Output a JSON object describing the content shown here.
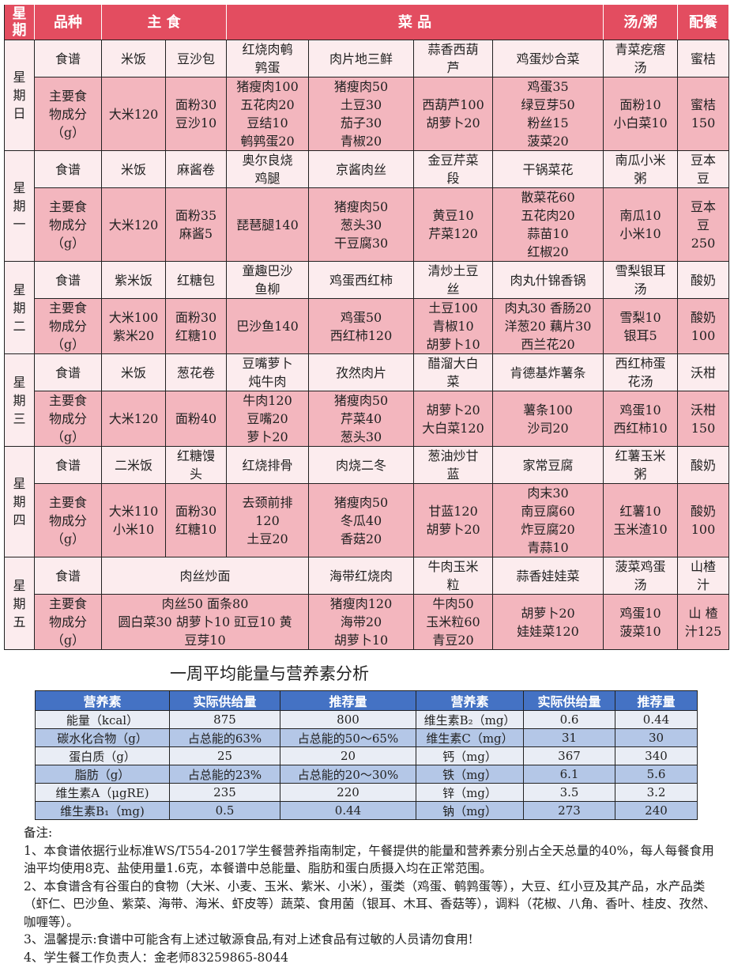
{
  "menu": {
    "header": {
      "day": "星\n期",
      "kind": "品种",
      "staple": "主 食",
      "dishes": "菜 品",
      "soup": "汤/粥",
      "side": "配餐"
    },
    "days": [
      {
        "day": "星\n期\n日",
        "recipe": [
          {
            "t": "食谱"
          },
          {
            "t": "米饭"
          },
          {
            "t": "豆沙包"
          },
          {
            "t": "红烧肉鹌\n鹑蛋"
          },
          {
            "t": "肉片地三鲜"
          },
          {
            "t": "蒜香西葫\n芦"
          },
          {
            "t": "鸡蛋炒合菜"
          },
          {
            "t": "青菜疙瘩\n汤"
          },
          {
            "t": "蜜桔"
          }
        ],
        "ingr": [
          {
            "t": "主要食\n物成分\n（g）"
          },
          {
            "t": "大米120"
          },
          {
            "t": "面粉30\n豆沙10"
          },
          {
            "t": "猪瘦肉100\n五花肉20\n豆结10\n鹌鹑蛋20"
          },
          {
            "t": "猪瘦肉50\n土豆30\n茄子30\n青椒20"
          },
          {
            "t": "西葫芦100\n胡萝卜20"
          },
          {
            "t": "鸡蛋35\n绿豆芽50\n粉丝15\n菠菜20"
          },
          {
            "t": "面粉10\n小白菜10"
          },
          {
            "t": "蜜桔\n150"
          }
        ]
      },
      {
        "day": "星\n期\n一",
        "recipe": [
          {
            "t": "食谱"
          },
          {
            "t": "米饭"
          },
          {
            "t": "麻酱卷"
          },
          {
            "t": "奥尔良烧\n鸡腿"
          },
          {
            "t": "京酱肉丝"
          },
          {
            "t": "金豆芹菜\n段"
          },
          {
            "t": "干锅菜花"
          },
          {
            "t": "南瓜小米\n粥"
          },
          {
            "t": "豆本\n豆"
          }
        ],
        "ingr": [
          {
            "t": "主要食\n物成分\n（g）"
          },
          {
            "t": "大米120"
          },
          {
            "t": "面粉35\n麻酱5"
          },
          {
            "t": "琵琶腿140"
          },
          {
            "t": "猪瘦肉50\n葱头30\n干豆腐30"
          },
          {
            "t": "黄豆10\n芹菜120"
          },
          {
            "t": "散菜花60\n五花肉20\n蒜苗10\n红椒20"
          },
          {
            "t": "南瓜10\n小米10"
          },
          {
            "t": "豆本\n豆\n250"
          }
        ]
      },
      {
        "day": "星\n期\n二",
        "recipe": [
          {
            "t": "食谱"
          },
          {
            "t": "紫米饭"
          },
          {
            "t": "红糖包"
          },
          {
            "t": "童趣巴沙\n鱼柳"
          },
          {
            "t": "鸡蛋西红柿"
          },
          {
            "t": "清炒土豆\n丝"
          },
          {
            "t": "肉丸什锦香锅"
          },
          {
            "t": "雪梨银耳\n汤"
          },
          {
            "t": "酸奶"
          }
        ],
        "ingr": [
          {
            "t": "主要食\n物成分\n（g）"
          },
          {
            "t": "大米100\n紫米20"
          },
          {
            "t": "面粉30\n红糖10"
          },
          {
            "t": "巴沙鱼140"
          },
          {
            "t": "鸡蛋50\n西红柿120"
          },
          {
            "t": "土豆100\n青椒10\n胡萝卜10"
          },
          {
            "t": "肉丸30 香肠20\n洋葱20 藕片30\n西兰花20"
          },
          {
            "t": "雪梨10\n银耳5"
          },
          {
            "t": "酸奶\n100"
          }
        ]
      },
      {
        "day": "星\n期\n三",
        "recipe": [
          {
            "t": "食谱"
          },
          {
            "t": "米饭"
          },
          {
            "t": "葱花卷"
          },
          {
            "t": "豆嘴萝卜\n炖牛肉"
          },
          {
            "t": "孜然肉片"
          },
          {
            "t": "醋溜大白\n菜"
          },
          {
            "t": "肯德基炸薯条"
          },
          {
            "t": "西红柿蛋\n花汤"
          },
          {
            "t": "沃柑"
          }
        ],
        "ingr": [
          {
            "t": "主要食\n物成分\n（g）"
          },
          {
            "t": "大米120"
          },
          {
            "t": "面粉40"
          },
          {
            "t": "牛肉120\n豆嘴20\n萝卜20"
          },
          {
            "t": "猪瘦肉50\n芹菜40\n葱头30"
          },
          {
            "t": "胡萝卜20\n大白菜120"
          },
          {
            "t": "薯条100\n沙司20"
          },
          {
            "t": "鸡蛋10\n西红柿10"
          },
          {
            "t": "沃柑\n150"
          }
        ]
      },
      {
        "day": "星\n期\n四",
        "recipe": [
          {
            "t": "食谱"
          },
          {
            "t": "二米饭"
          },
          {
            "t": "红糖馒\n头"
          },
          {
            "t": "红烧排骨"
          },
          {
            "t": "肉烧二冬"
          },
          {
            "t": "葱油炒甘\n蓝"
          },
          {
            "t": "家常豆腐"
          },
          {
            "t": "红薯玉米\n粥"
          },
          {
            "t": "酸奶"
          }
        ],
        "ingr": [
          {
            "t": "主要食\n物成分\n（g）"
          },
          {
            "t": "大米110\n小米10"
          },
          {
            "t": "面粉30\n红糖10"
          },
          {
            "t": "去颈前排\n120\n土豆20"
          },
          {
            "t": "猪瘦肉50\n冬瓜40\n香菇20"
          },
          {
            "t": "甘蓝120\n胡萝卜20"
          },
          {
            "t": "肉末30\n南豆腐60\n炸豆腐20\n青蒜10"
          },
          {
            "t": "红薯10\n玉米渣10"
          },
          {
            "t": "酸奶\n100"
          }
        ]
      },
      {
        "day": "星\n期\n五",
        "recipe": [
          {
            "t": "食谱"
          },
          {
            "t": "肉丝炒面",
            "span": 3
          },
          {
            "t": "海带红烧肉"
          },
          {
            "t": "牛肉玉米\n粒"
          },
          {
            "t": "蒜香娃娃菜"
          },
          {
            "t": "菠菜鸡蛋\n汤"
          },
          {
            "t": "山楂\n汁"
          }
        ],
        "ingr": [
          {
            "t": "主要食\n物成分\n（g）"
          },
          {
            "t": "肉丝50 面条80\n圆白菜30 胡萝卜10 豇豆10 黄\n豆芽10",
            "span": 3
          },
          {
            "t": "猪瘦肉120\n海带20\n胡萝卜10"
          },
          {
            "t": "牛肉50\n玉米粒60\n青豆20"
          },
          {
            "t": "胡萝卜20\n娃娃菜120"
          },
          {
            "t": "鸡蛋10\n菠菜10"
          },
          {
            "t": "山 楂\n汁125"
          }
        ]
      }
    ]
  },
  "analysis": {
    "title": "一周平均能量与营养素分析",
    "headers": [
      "营养素",
      "实际供给量",
      "推荐量",
      "营养素",
      "实际供给量",
      "推荐量"
    ],
    "rows": [
      [
        "能量（kcal）",
        "875",
        "800",
        "维生素B₂（mg）",
        "0.6",
        "0.44"
      ],
      [
        "碳水化合物（g）",
        "占总能的63%",
        "占总能的50～65%",
        "维生素C（mg）",
        "31",
        "30"
      ],
      [
        "蛋白质（g）",
        "25",
        "20",
        "钙（mg）",
        "367",
        "340"
      ],
      [
        "脂肪（g）",
        "占总能的23%",
        "占总能的20～30%",
        "铁（mg）",
        "6.1",
        "5.6"
      ],
      [
        "维生素A（μgRE)",
        "235",
        "220",
        "锌（mg）",
        "3.5",
        "3.2"
      ],
      [
        "维生素B₁（mg)",
        "0.5",
        "0.44",
        "钠（mg）",
        "273",
        "240"
      ]
    ]
  },
  "notes": {
    "heading": "备注:",
    "items": [
      "1、本食谱依据行业标准WS/T554-2017学生餐营养指南制定，午餐提供的能量和营养素分别占全天总量的40%，每人每餐食用油平均使用8克、盐使用量1.6克，本餐谱中总能量、脂肪和蛋白质摄入均在正常范围。",
      "2、本食谱含有谷蛋白的食物（大米、小麦、玉米、紫米、小米），蛋类（鸡蛋、鹌鹑蛋等），大豆、红小豆及其产品，水产品类（虾仁、巴沙鱼、紫菜、海带、海米、虾皮等）蔬菜、食用菌（银耳、木耳、香菇等），调料（花椒、八角、香叶、桂皮、孜然、咖喱等）。",
      "3、温馨提示:食谱中可能含有上述过敏源食品,有对上述食品有过敏的人员请勿食用!",
      "4、学生餐工作负责人：金老师83259865-8044"
    ]
  }
}
